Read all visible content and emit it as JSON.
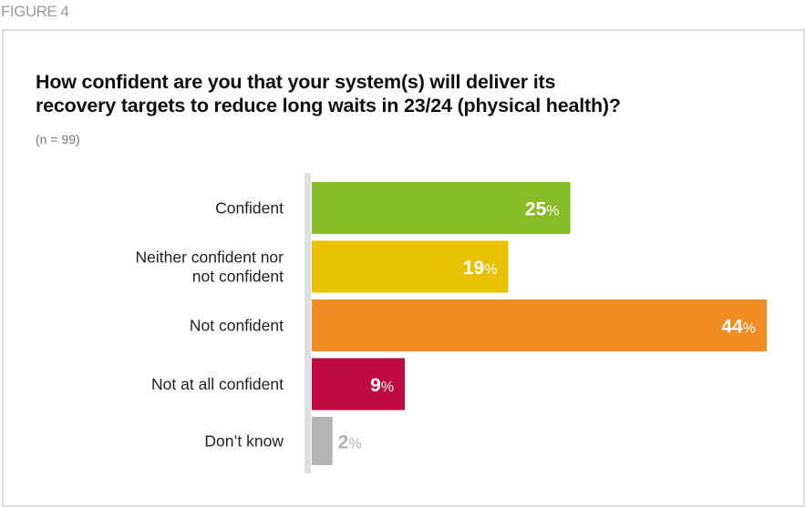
{
  "figure_label": "FIGURE 4",
  "chart_data": {
    "type": "bar",
    "orientation": "horizontal",
    "title": "How confident are you that your system(s) will deliver its recovery targets to reduce long waits in 23/24 (physical health)?",
    "title_lines": [
      "How confident are you that your system(s) will deliver its",
      "recovery targets to reduce long waits in 23/24 (physical health)?"
    ],
    "subtitle": "(n = 99)",
    "xlabel": "",
    "ylabel": "",
    "xlim": [
      0,
      44
    ],
    "grid": false,
    "legend": "none",
    "unit": "%",
    "categories": [
      [
        "Confident"
      ],
      [
        "Neither confident nor",
        "not confident"
      ],
      [
        "Not confident"
      ],
      [
        "Not at all confident"
      ],
      [
        "Don’t know"
      ]
    ],
    "values": [
      25,
      19,
      44,
      9,
      2
    ],
    "colors": [
      "#88bc26",
      "#e8c201",
      "#f08c21",
      "#be0a40",
      "#b1b3b5"
    ],
    "label_colors": [
      "#ffffff",
      "#ffffff",
      "#ffffff",
      "#ffffff",
      "#b1b3b5"
    ],
    "label_inside": [
      true,
      true,
      true,
      true,
      false
    ],
    "axis_color": "#dde1e4"
  }
}
